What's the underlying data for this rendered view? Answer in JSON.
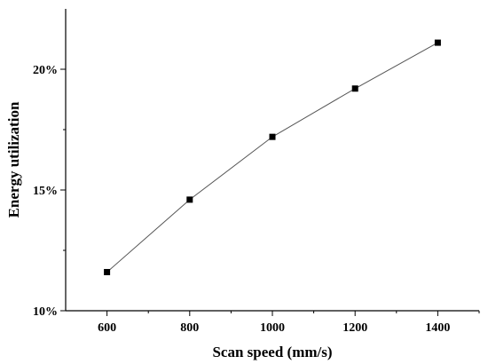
{
  "chart_data": {
    "type": "line",
    "xlabel": "Scan speed (mm/s)",
    "ylabel": "Energy utilization",
    "x": [
      600,
      800,
      1000,
      1200,
      1400
    ],
    "series": [
      {
        "values": [
          11.6,
          14.6,
          17.2,
          19.2,
          21.1
        ]
      }
    ],
    "xlim": [
      500,
      1500
    ],
    "ylim": [
      10,
      22.5
    ],
    "x_ticks": [
      600,
      800,
      1000,
      1200,
      1400
    ],
    "y_ticks": [
      10,
      15,
      20
    ],
    "x_tick_labels": [
      "600",
      "800",
      "1000",
      "1200",
      "1400"
    ],
    "y_tick_labels": [
      "10%",
      "15%",
      "20%"
    ],
    "y_unit": "%",
    "marker": "square",
    "grid": false,
    "colors": {
      "line": "#555555",
      "marker": "#000000",
      "axes": "#000000"
    }
  }
}
